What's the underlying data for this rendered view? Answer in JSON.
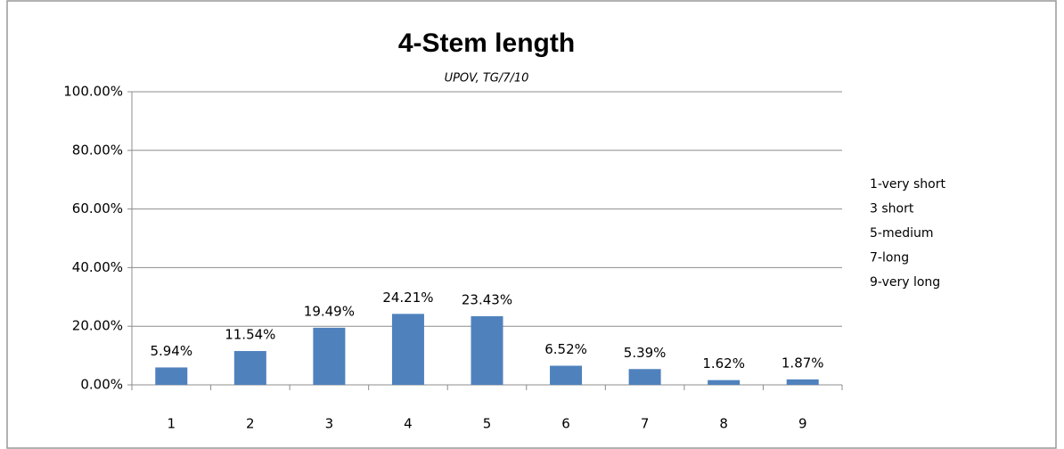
{
  "chart_data": {
    "type": "bar",
    "title": "4-Stem length",
    "subtitle": "UPOV, TG/7/10",
    "categories": [
      "1",
      "2",
      "3",
      "4",
      "5",
      "6",
      "7",
      "8",
      "9"
    ],
    "values": [
      5.94,
      11.54,
      19.49,
      24.21,
      23.43,
      6.52,
      5.39,
      1.62,
      1.87
    ],
    "value_labels": [
      "5.94%",
      "11.54%",
      "19.49%",
      "24.21%",
      "23.43%",
      "6.52%",
      "5.39%",
      "1.62%",
      "1.87%"
    ],
    "color": "#4f81bd",
    "ylim": [
      0,
      100
    ],
    "yticks": [
      {
        "value": 0,
        "label": "0.00%"
      },
      {
        "value": 20,
        "label": "20.00%"
      },
      {
        "value": 40,
        "label": "40.00%"
      },
      {
        "value": 60,
        "label": "60.00%"
      },
      {
        "value": 80,
        "label": "80.00%"
      },
      {
        "value": 100,
        "label": "100.00%"
      }
    ],
    "grid": true,
    "annotations": [
      "1-very short",
      "3 short",
      "5-medium",
      "7-long",
      "9-very long"
    ]
  }
}
